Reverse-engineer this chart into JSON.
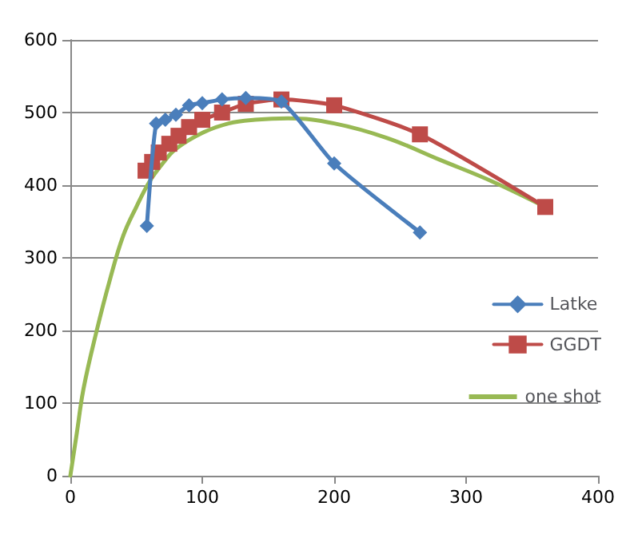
{
  "chart_data": {
    "type": "line",
    "xlim": [
      0,
      400
    ],
    "xticks": [
      0,
      100,
      200,
      300,
      400
    ],
    "ylim": [
      0,
      600
    ],
    "yticks": [
      0,
      100,
      200,
      300,
      400,
      500,
      600
    ],
    "grid": "y",
    "legend": "right",
    "series": [
      {
        "name": "Latke",
        "color": "#4a7ebb",
        "marker": "diamond",
        "x": [
          58,
          65,
          72,
          80,
          90,
          100,
          115,
          133,
          160,
          200,
          265
        ],
        "values": [
          344,
          485,
          490,
          497,
          510,
          513,
          518,
          520,
          515,
          430,
          335
        ]
      },
      {
        "name": "GGDT",
        "color": "#be4b48",
        "marker": "square",
        "x": [
          57,
          62,
          67,
          75,
          82,
          90,
          100,
          115,
          133,
          160,
          200,
          265,
          360
        ],
        "values": [
          420,
          432,
          445,
          457,
          468,
          480,
          490,
          500,
          512,
          518,
          510,
          470,
          370
        ]
      },
      {
        "name": "one shot",
        "color": "#98b954",
        "marker": "none",
        "x": [
          0,
          5,
          10,
          20,
          30,
          40,
          50,
          60,
          70,
          80,
          100,
          120,
          140,
          165,
          200,
          240,
          280,
          320,
          360
        ],
        "values": [
          0,
          60,
          120,
          200,
          270,
          330,
          370,
          405,
          430,
          450,
          472,
          485,
          490,
          492,
          485,
          465,
          435,
          405,
          370
        ]
      }
    ]
  }
}
